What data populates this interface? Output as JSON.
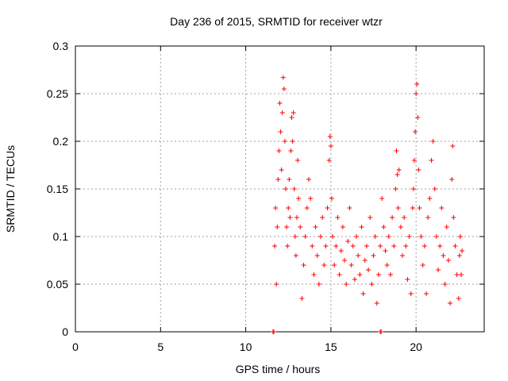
{
  "chart_data": {
    "type": "scatter",
    "title": "Day 236 of 2015, SRMTID for receiver wtzr",
    "xlabel": "GPS time / hours",
    "ylabel": "SRMTID / TECUs",
    "xlim": [
      0,
      24
    ],
    "ylim": [
      0,
      0.3
    ],
    "x_ticks": [
      0,
      5,
      10,
      15,
      20
    ],
    "y_ticks": [
      0,
      0.05,
      0.1,
      0.15,
      0.2,
      0.25,
      0.3
    ],
    "x_tick_labels": [
      "0",
      "5",
      "10",
      "15",
      "20"
    ],
    "y_tick_labels": [
      "0",
      "0.05",
      "0.1",
      "0.15",
      "0.2",
      "0.25",
      "0.3"
    ],
    "grid": true,
    "legend": "none",
    "marker": "+",
    "color": "#ff0000",
    "series": [
      {
        "values": [
          [
            11.6,
            0.0
          ],
          [
            11.65,
            0.0
          ],
          [
            17.9,
            0.0
          ],
          [
            17.95,
            0.0
          ],
          [
            11.7,
            0.09
          ],
          [
            11.75,
            0.13
          ],
          [
            11.8,
            0.05
          ],
          [
            11.85,
            0.11
          ],
          [
            11.9,
            0.16
          ],
          [
            11.95,
            0.19
          ],
          [
            12.0,
            0.24
          ],
          [
            12.05,
            0.21
          ],
          [
            12.1,
            0.17
          ],
          [
            12.15,
            0.23
          ],
          [
            12.2,
            0.267
          ],
          [
            12.25,
            0.255
          ],
          [
            12.3,
            0.2
          ],
          [
            12.35,
            0.15
          ],
          [
            12.4,
            0.11
          ],
          [
            12.45,
            0.09
          ],
          [
            12.5,
            0.13
          ],
          [
            12.55,
            0.16
          ],
          [
            12.6,
            0.12
          ],
          [
            12.65,
            0.19
          ],
          [
            12.7,
            0.225
          ],
          [
            12.75,
            0.2
          ],
          [
            12.8,
            0.23
          ],
          [
            12.85,
            0.15
          ],
          [
            12.9,
            0.1
          ],
          [
            12.95,
            0.08
          ],
          [
            13.0,
            0.12
          ],
          [
            13.05,
            0.18
          ],
          [
            13.1,
            0.14
          ],
          [
            13.2,
            0.11
          ],
          [
            13.3,
            0.035
          ],
          [
            13.4,
            0.07
          ],
          [
            13.5,
            0.1
          ],
          [
            13.6,
            0.13
          ],
          [
            13.7,
            0.16
          ],
          [
            13.8,
            0.14
          ],
          [
            13.9,
            0.09
          ],
          [
            14.0,
            0.06
          ],
          [
            14.1,
            0.11
          ],
          [
            14.2,
            0.08
          ],
          [
            14.3,
            0.05
          ],
          [
            14.4,
            0.1
          ],
          [
            14.5,
            0.12
          ],
          [
            14.6,
            0.07
          ],
          [
            14.7,
            0.09
          ],
          [
            14.8,
            0.13
          ],
          [
            14.9,
            0.18
          ],
          [
            14.95,
            0.205
          ],
          [
            15.0,
            0.195
          ],
          [
            15.05,
            0.14
          ],
          [
            15.1,
            0.1
          ],
          [
            15.2,
            0.07
          ],
          [
            15.3,
            0.09
          ],
          [
            15.4,
            0.12
          ],
          [
            15.5,
            0.06
          ],
          [
            15.6,
            0.085
          ],
          [
            15.7,
            0.11
          ],
          [
            15.8,
            0.075
          ],
          [
            15.9,
            0.05
          ],
          [
            16.0,
            0.095
          ],
          [
            16.1,
            0.13
          ],
          [
            16.2,
            0.07
          ],
          [
            16.3,
            0.09
          ],
          [
            16.4,
            0.055
          ],
          [
            16.5,
            0.1
          ],
          [
            16.6,
            0.08
          ],
          [
            16.7,
            0.06
          ],
          [
            16.8,
            0.11
          ],
          [
            16.9,
            0.04
          ],
          [
            17.0,
            0.075
          ],
          [
            17.1,
            0.09
          ],
          [
            17.2,
            0.065
          ],
          [
            17.3,
            0.12
          ],
          [
            17.4,
            0.05
          ],
          [
            17.5,
            0.08
          ],
          [
            17.6,
            0.1
          ],
          [
            17.7,
            0.03
          ],
          [
            17.8,
            0.06
          ],
          [
            17.9,
            0.09
          ],
          [
            18.0,
            0.14
          ],
          [
            18.1,
            0.11
          ],
          [
            18.2,
            0.085
          ],
          [
            18.3,
            0.07
          ],
          [
            18.4,
            0.1
          ],
          [
            18.5,
            0.06
          ],
          [
            18.6,
            0.12
          ],
          [
            18.7,
            0.09
          ],
          [
            18.8,
            0.15
          ],
          [
            18.85,
            0.19
          ],
          [
            18.9,
            0.165
          ],
          [
            18.95,
            0.13
          ],
          [
            19.0,
            0.17
          ],
          [
            19.1,
            0.11
          ],
          [
            19.2,
            0.08
          ],
          [
            19.3,
            0.12
          ],
          [
            19.4,
            0.09
          ],
          [
            19.5,
            0.055
          ],
          [
            19.6,
            0.1
          ],
          [
            19.7,
            0.04
          ],
          [
            19.8,
            0.13
          ],
          [
            19.85,
            0.15
          ],
          [
            19.9,
            0.18
          ],
          [
            19.95,
            0.21
          ],
          [
            20.0,
            0.25
          ],
          [
            20.05,
            0.26
          ],
          [
            20.1,
            0.225
          ],
          [
            20.15,
            0.17
          ],
          [
            20.2,
            0.13
          ],
          [
            20.3,
            0.1
          ],
          [
            20.4,
            0.07
          ],
          [
            20.5,
            0.09
          ],
          [
            20.6,
            0.04
          ],
          [
            20.7,
            0.12
          ],
          [
            20.8,
            0.14
          ],
          [
            20.9,
            0.18
          ],
          [
            21.0,
            0.2
          ],
          [
            21.1,
            0.15
          ],
          [
            21.2,
            0.1
          ],
          [
            21.3,
            0.065
          ],
          [
            21.4,
            0.09
          ],
          [
            21.5,
            0.13
          ],
          [
            21.6,
            0.08
          ],
          [
            21.7,
            0.05
          ],
          [
            21.8,
            0.11
          ],
          [
            21.9,
            0.075
          ],
          [
            22.0,
            0.03
          ],
          [
            22.1,
            0.16
          ],
          [
            22.15,
            0.195
          ],
          [
            22.2,
            0.12
          ],
          [
            22.3,
            0.09
          ],
          [
            22.4,
            0.06
          ],
          [
            22.5,
            0.035
          ],
          [
            22.55,
            0.08
          ],
          [
            22.6,
            0.1
          ],
          [
            22.65,
            0.06
          ],
          [
            22.7,
            0.085
          ]
        ]
      }
    ]
  }
}
